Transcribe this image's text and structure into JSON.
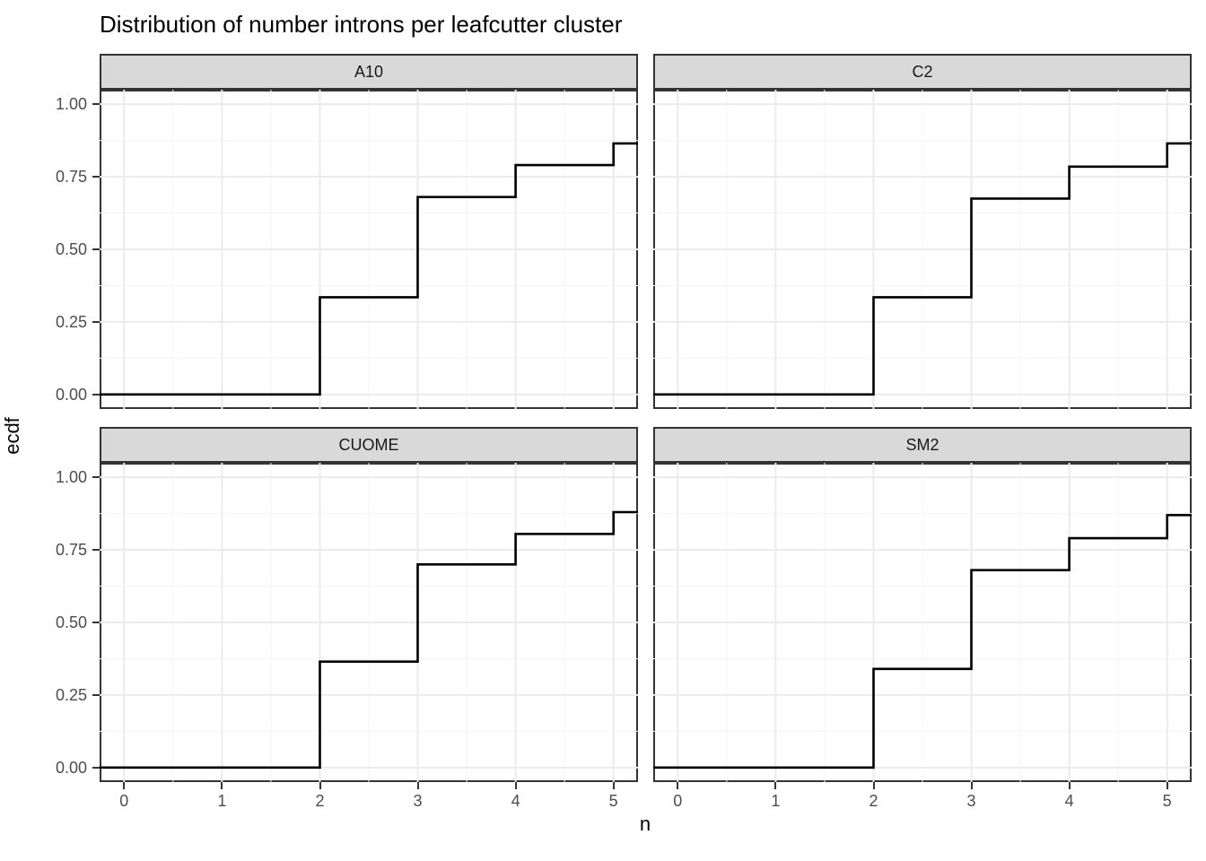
{
  "chart_data": {
    "type": "line",
    "subtype": "ecdf-step-faceted",
    "title": "Distribution of number introns per leafcutter cluster",
    "xlabel": "n",
    "ylabel": "ecdf",
    "xlim": [
      -0.25,
      5.25
    ],
    "ylim": [
      -0.05,
      1.05
    ],
    "x_tick_labels": [
      "0",
      "1",
      "2",
      "3",
      "4",
      "5"
    ],
    "x_tick_values": [
      0,
      1,
      2,
      3,
      4,
      5
    ],
    "y_tick_labels": [
      "1.00",
      "0.75",
      "0.50",
      "0.25",
      "0.00"
    ],
    "y_tick_values": [
      1.0,
      0.75,
      0.5,
      0.25,
      0.0
    ],
    "grid": {
      "visible": true,
      "major_x": [
        0,
        1,
        2,
        3,
        4,
        5
      ],
      "minor_x": [
        0.5,
        1.5,
        2.5,
        3.5,
        4.5
      ],
      "major_y": [
        0.0,
        0.25,
        0.5,
        0.75,
        1.0
      ],
      "minor_y": [
        0.125,
        0.375,
        0.625,
        0.875
      ]
    },
    "legend_position": "none",
    "facets": [
      {
        "label": "A10",
        "ecdf_steps": {
          "x": [
            2,
            3,
            4,
            5
          ],
          "y": [
            0.335,
            0.68,
            0.79,
            0.865
          ]
        }
      },
      {
        "label": "C2",
        "ecdf_steps": {
          "x": [
            2,
            3,
            4,
            5
          ],
          "y": [
            0.335,
            0.675,
            0.785,
            0.865
          ]
        }
      },
      {
        "label": "CUOME",
        "ecdf_steps": {
          "x": [
            2,
            3,
            4,
            5
          ],
          "y": [
            0.365,
            0.7,
            0.805,
            0.88
          ]
        }
      },
      {
        "label": "SM2",
        "ecdf_steps": {
          "x": [
            2,
            3,
            4,
            5
          ],
          "y": [
            0.34,
            0.68,
            0.79,
            0.87
          ]
        }
      }
    ],
    "colors": {
      "line": "#000000",
      "panel_bg": "#ffffff",
      "panel_border": "#333333",
      "strip_fill": "#d9d9d9",
      "strip_border": "#333333",
      "grid_major": "#ebebeb",
      "grid_minor": "#f4f4f4",
      "axis_text": "#4d4d4d",
      "axis_title": "#000000",
      "tick": "#333333",
      "background": "#ffffff"
    }
  }
}
